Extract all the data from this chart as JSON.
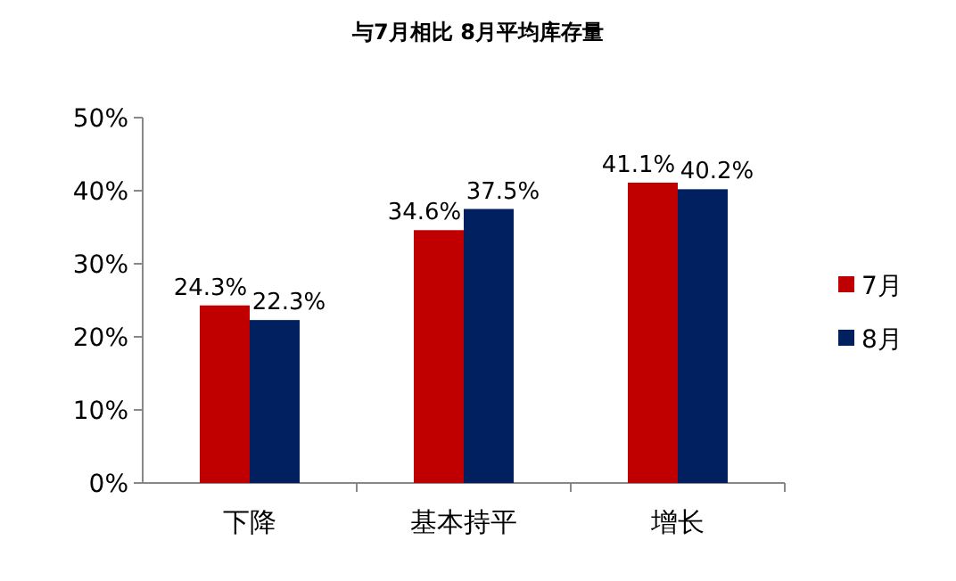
{
  "chart_data": {
    "type": "bar",
    "title": "与7月相比 8月平均库存量",
    "categories": [
      "下降",
      "基本持平",
      "增长"
    ],
    "series": [
      {
        "name": "7月",
        "color": "#c00000",
        "values": [
          24.3,
          34.6,
          41.1
        ],
        "value_labels": [
          "24.3%",
          "34.6%",
          "41.1%"
        ]
      },
      {
        "name": "8月",
        "color": "#002060",
        "values": [
          22.3,
          37.5,
          40.2
        ],
        "value_labels": [
          "22.3%",
          "37.5%",
          "40.2%"
        ]
      }
    ],
    "ylim": [
      0,
      50
    ],
    "yticks": [
      {
        "value": 0,
        "label": "0%"
      },
      {
        "value": 10,
        "label": "10%"
      },
      {
        "value": 20,
        "label": "20%"
      },
      {
        "value": 30,
        "label": "30%"
      },
      {
        "value": 40,
        "label": "40%"
      },
      {
        "value": 50,
        "label": "50%"
      }
    ],
    "grid": false,
    "legend": "right"
  }
}
